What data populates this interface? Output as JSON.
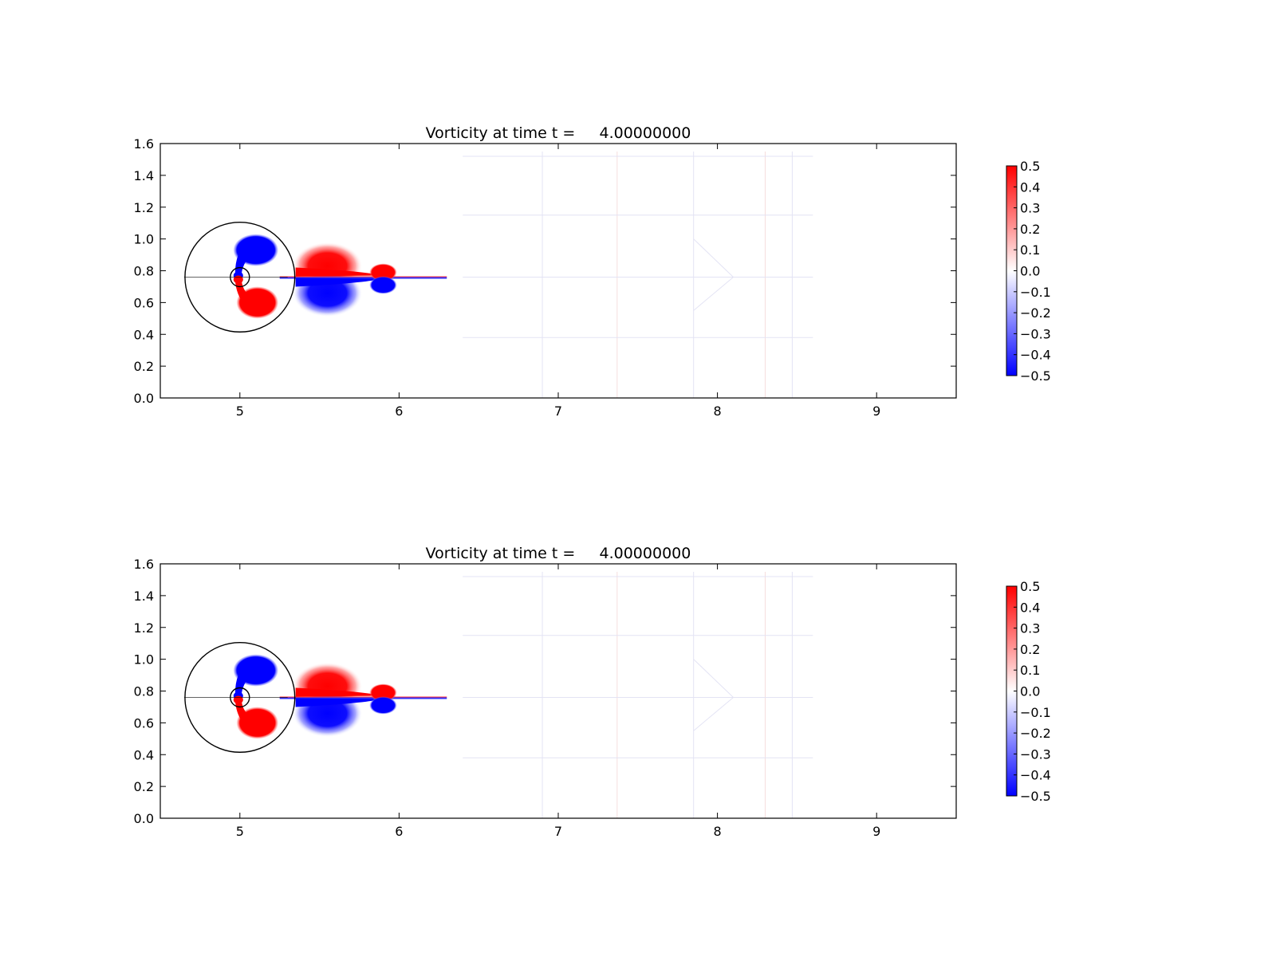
{
  "figure": {
    "background": "#ffffff"
  },
  "chart_data": [
    {
      "type": "heatmap",
      "title": "Vorticity at time t =     4.00000000",
      "quantity": "vorticity",
      "xlim": [
        4.5,
        9.5
      ],
      "ylim": [
        0.0,
        1.6
      ],
      "xticks": [
        "5",
        "6",
        "7",
        "8",
        "9"
      ],
      "yticks": [
        "0.0",
        "0.2",
        "0.4",
        "0.6",
        "0.8",
        "1.0",
        "1.2",
        "1.4",
        "1.6"
      ],
      "grid": false,
      "colorbar": {
        "vmin": -0.5,
        "vmax": 0.5,
        "colormap": "bwr",
        "ticks": [
          "−0.5",
          "−0.4",
          "−0.3",
          "−0.2",
          "−0.1",
          "0.0",
          "0.1",
          "0.2",
          "0.3",
          "0.4",
          "0.5"
        ],
        "color_low": "#0000ff",
        "color_mid": "#ffffff",
        "color_high": "#ff0000"
      },
      "overlay_circles": [
        {
          "center": [
            5.0,
            0.76
          ],
          "radius": 0.345
        },
        {
          "center": [
            5.0,
            0.76
          ],
          "radius": 0.06
        }
      ],
      "features": [
        {
          "kind": "blob",
          "sign": "negative",
          "x": 5.1,
          "y": 0.93,
          "rx": 0.14,
          "ry": 0.1,
          "value": -0.5
        },
        {
          "kind": "blob",
          "sign": "positive",
          "x": 5.11,
          "y": 0.6,
          "rx": 0.13,
          "ry": 0.1,
          "value": 0.5
        },
        {
          "kind": "halo",
          "sign": "positive",
          "x": 5.55,
          "y": 0.83,
          "rx": 0.22,
          "ry": 0.15,
          "value": 0.5
        },
        {
          "kind": "halo",
          "sign": "negative",
          "x": 5.55,
          "y": 0.66,
          "rx": 0.22,
          "ry": 0.15,
          "value": -0.5
        },
        {
          "kind": "blob",
          "sign": "positive",
          "x": 5.9,
          "y": 0.79,
          "rx": 0.085,
          "ry": 0.055,
          "value": 0.5
        },
        {
          "kind": "blob",
          "sign": "negative",
          "x": 5.9,
          "y": 0.71,
          "rx": 0.085,
          "ry": 0.055,
          "value": -0.5
        }
      ]
    },
    {
      "type": "heatmap",
      "title": "Vorticity at time t =     4.00000000",
      "quantity": "vorticity",
      "xlim": [
        4.5,
        9.5
      ],
      "ylim": [
        0.0,
        1.6
      ],
      "xticks": [
        "5",
        "6",
        "7",
        "8",
        "9"
      ],
      "yticks": [
        "0.0",
        "0.2",
        "0.4",
        "0.6",
        "0.8",
        "1.0",
        "1.2",
        "1.4",
        "1.6"
      ],
      "grid": false,
      "colorbar": {
        "vmin": -0.5,
        "vmax": 0.5,
        "colormap": "bwr",
        "ticks": [
          "−0.5",
          "−0.4",
          "−0.3",
          "−0.2",
          "−0.1",
          "0.0",
          "0.1",
          "0.2",
          "0.3",
          "0.4",
          "0.5"
        ],
        "color_low": "#0000ff",
        "color_mid": "#ffffff",
        "color_high": "#ff0000"
      },
      "overlay_circles": [
        {
          "center": [
            5.0,
            0.76
          ],
          "radius": 0.345
        },
        {
          "center": [
            5.0,
            0.76
          ],
          "radius": 0.06
        }
      ],
      "features": [
        {
          "kind": "blob",
          "sign": "negative",
          "x": 5.1,
          "y": 0.93,
          "rx": 0.14,
          "ry": 0.1,
          "value": -0.5
        },
        {
          "kind": "blob",
          "sign": "positive",
          "x": 5.11,
          "y": 0.6,
          "rx": 0.13,
          "ry": 0.1,
          "value": 0.5
        },
        {
          "kind": "halo",
          "sign": "positive",
          "x": 5.55,
          "y": 0.83,
          "rx": 0.22,
          "ry": 0.15,
          "value": 0.5
        },
        {
          "kind": "halo",
          "sign": "negative",
          "x": 5.55,
          "y": 0.66,
          "rx": 0.22,
          "ry": 0.15,
          "value": -0.5
        },
        {
          "kind": "blob",
          "sign": "positive",
          "x": 5.9,
          "y": 0.79,
          "rx": 0.085,
          "ry": 0.055,
          "value": 0.5
        },
        {
          "kind": "blob",
          "sign": "negative",
          "x": 5.9,
          "y": 0.71,
          "rx": 0.085,
          "ry": 0.055,
          "value": -0.5
        }
      ]
    }
  ]
}
